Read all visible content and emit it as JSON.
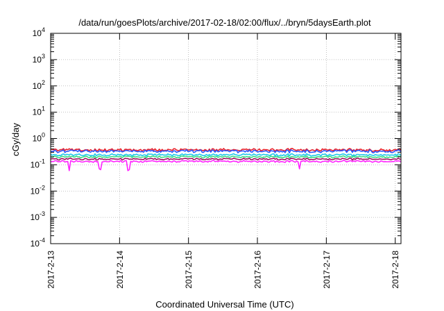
{
  "chart_data": {
    "type": "line",
    "title": "/data/run/goesPlots/archive/2017-02-18/02:00/flux/../bryn/5daysEarth.plot",
    "xlabel": "Coordinated Universal Time (UTC)",
    "ylabel": "cGy/day",
    "yscale": "log",
    "ylim": [
      0.0001,
      10000
    ],
    "y_ticks": [
      {
        "base": "10",
        "exp": "4",
        "value": 10000
      },
      {
        "base": "10",
        "exp": "3",
        "value": 1000
      },
      {
        "base": "10",
        "exp": "2",
        "value": 100
      },
      {
        "base": "10",
        "exp": "1",
        "value": 10
      },
      {
        "base": "10",
        "exp": "0",
        "value": 1
      },
      {
        "base": "10",
        "exp": "-1",
        "value": 0.1
      },
      {
        "base": "10",
        "exp": "-2",
        "value": 0.01
      },
      {
        "base": "10",
        "exp": "-3",
        "value": 0.001
      },
      {
        "base": "10",
        "exp": "-4",
        "value": 0.0001
      }
    ],
    "xlim": [
      "2017-02-13 00:00",
      "2017-02-18 02:00"
    ],
    "x_ticks": [
      "2017-2-13",
      "2017-2-14",
      "2017-2-15",
      "2017-2-16",
      "2017-2-17",
      "2017-2-18"
    ],
    "grid": true,
    "series": [
      {
        "color": "#e8202a",
        "level": 0.37,
        "variation": 0.12
      },
      {
        "color": "#2b57ff",
        "level": 0.33,
        "variation": 0.12
      },
      {
        "color": "#1fc8e8",
        "level": 0.24,
        "variation": 0.1
      },
      {
        "color": "#3ddc84",
        "level": 0.2,
        "variation": 0.09
      },
      {
        "color": "#a01060",
        "level": 0.165,
        "variation": 0.08
      },
      {
        "color": "#ff22ff",
        "level": 0.135,
        "variation": 0.08,
        "dips": [
          {
            "date": "2017-02-13 06:30",
            "value": 0.06
          },
          {
            "date": "2017-02-13 17:00",
            "value": 0.07
          },
          {
            "date": "2017-02-13 17:30",
            "value": 0.065
          },
          {
            "date": "2017-02-14 03:00",
            "value": 0.06
          },
          {
            "date": "2017-02-14 03:30",
            "value": 0.065
          },
          {
            "date": "2017-02-16 14:30",
            "value": 0.07
          }
        ]
      }
    ]
  }
}
